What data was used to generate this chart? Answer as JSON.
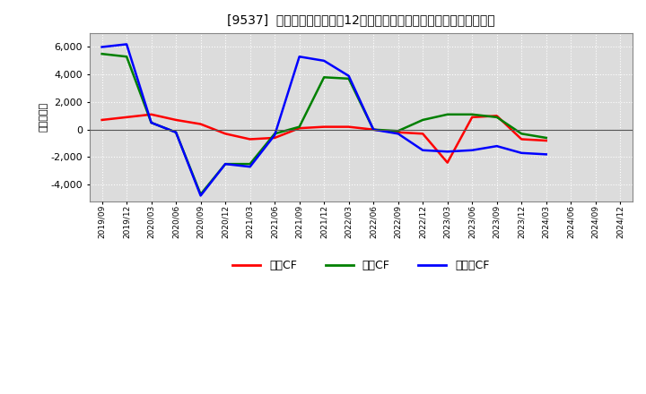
{
  "title": "[9537]  キャッシュフローの12か月移動合計の対前年同期増減額の推移",
  "ylabel": "（百万円）",
  "background_color": "#ffffff",
  "plot_background_color": "#dcdcdc",
  "grid_color": "#ffffff",
  "ylim": [
    -5200,
    7000
  ],
  "yticks": [
    -4000,
    -2000,
    0,
    2000,
    4000,
    6000
  ],
  "x_labels": [
    "2019/09",
    "2019/12",
    "2020/03",
    "2020/06",
    "2020/09",
    "2020/12",
    "2021/03",
    "2021/06",
    "2021/09",
    "2021/12",
    "2022/03",
    "2022/06",
    "2022/09",
    "2022/12",
    "2023/03",
    "2023/06",
    "2023/09",
    "2023/12",
    "2024/03",
    "2024/06",
    "2024/09",
    "2024/12"
  ],
  "series": {
    "営業CF": {
      "color": "#ff0000",
      "values": [
        700,
        900,
        1100,
        700,
        400,
        -300,
        -700,
        -600,
        100,
        200,
        200,
        0,
        -200,
        -300,
        -2400,
        900,
        1000,
        -700,
        -800,
        null,
        null,
        null
      ]
    },
    "投資CF": {
      "color": "#008000",
      "values": [
        5500,
        5300,
        500,
        -200,
        -4700,
        -2500,
        -2500,
        -300,
        200,
        3800,
        3700,
        0,
        -100,
        700,
        1100,
        1100,
        900,
        -300,
        -600,
        null,
        null,
        null
      ]
    },
    "フリーCF": {
      "color": "#0000ff",
      "values": [
        6000,
        6200,
        500,
        -200,
        -4800,
        -2500,
        -2700,
        -400,
        5300,
        5000,
        3900,
        0,
        -300,
        -1500,
        -1600,
        -1500,
        -1200,
        -1700,
        -1800,
        null,
        null,
        null
      ]
    }
  },
  "legend_entries": [
    "営業CF",
    "投資CF",
    "フリーCF"
  ],
  "legend_colors": [
    "#ff0000",
    "#008000",
    "#0000ff"
  ]
}
